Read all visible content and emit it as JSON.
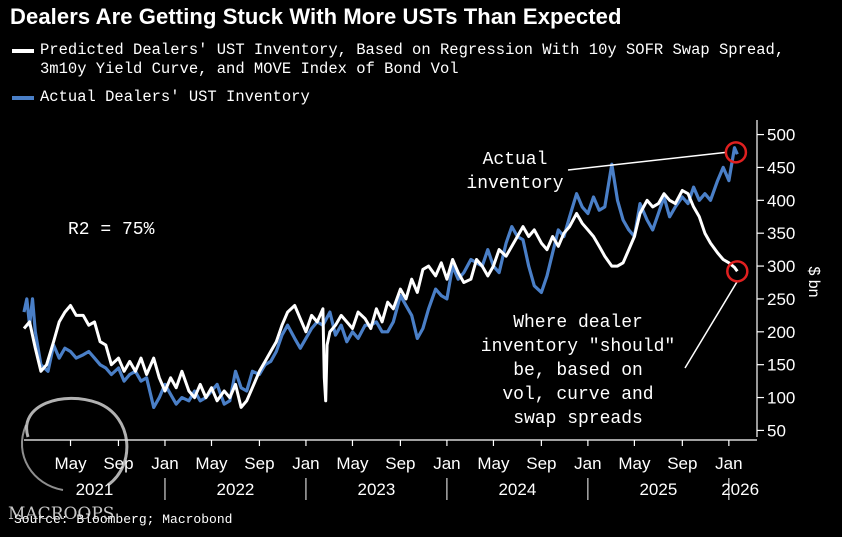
{
  "title": "Dealers Are Getting Stuck With More USTs Than Expected",
  "legend": [
    {
      "label_line1": "Predicted Dealers' UST Inventory, Based on Regression With 10y SOFR Swap Spread,",
      "label_line2": "3m10y Yield Curve, and MOVE Index of Bond Vol",
      "color": "#ffffff"
    },
    {
      "label_line1": "Actual Dealers' UST Inventory",
      "label_line2": "",
      "color": "#4a7fc7"
    }
  ],
  "source": "Source: Bloomberg; Macrobond",
  "watermark": "MACROOPS",
  "chart_data": {
    "type": "line",
    "title": "Dealers Are Getting Stuck With More USTs Than Expected",
    "ylabel": "$ bn",
    "ylim": [
      40,
      510
    ],
    "yticks": [
      50,
      100,
      150,
      200,
      250,
      300,
      350,
      400,
      450,
      500
    ],
    "xlim": [
      2021.0,
      2026.15
    ],
    "xticks": [
      {
        "t": 2021.33,
        "label": "May"
      },
      {
        "t": 2021.67,
        "label": "Sep"
      },
      {
        "t": 2022.0,
        "label": "Jan"
      },
      {
        "t": 2022.33,
        "label": "May"
      },
      {
        "t": 2022.67,
        "label": "Sep"
      },
      {
        "t": 2023.0,
        "label": "Jan"
      },
      {
        "t": 2023.33,
        "label": "May"
      },
      {
        "t": 2023.67,
        "label": "Sep"
      },
      {
        "t": 2024.0,
        "label": "Jan"
      },
      {
        "t": 2024.33,
        "label": "May"
      },
      {
        "t": 2024.67,
        "label": "Sep"
      },
      {
        "t": 2025.0,
        "label": "Jan"
      },
      {
        "t": 2025.33,
        "label": "May"
      },
      {
        "t": 2025.67,
        "label": "Sep"
      },
      {
        "t": 2026.0,
        "label": "Jan"
      }
    ],
    "years": [
      {
        "t": 2021.5,
        "label": "2021"
      },
      {
        "t": 2022.5,
        "label": "2022"
      },
      {
        "t": 2023.5,
        "label": "2023"
      },
      {
        "t": 2024.5,
        "label": "2024"
      },
      {
        "t": 2025.5,
        "label": "2025"
      },
      {
        "t": 2026.08,
        "label": "2026"
      }
    ],
    "series": [
      {
        "name": "Predicted Dealers' UST Inventory",
        "color": "#ffffff",
        "points": [
          [
            2021.0,
            205
          ],
          [
            2021.04,
            215
          ],
          [
            2021.08,
            175
          ],
          [
            2021.12,
            140
          ],
          [
            2021.16,
            150
          ],
          [
            2021.21,
            185
          ],
          [
            2021.25,
            215
          ],
          [
            2021.29,
            230
          ],
          [
            2021.33,
            240
          ],
          [
            2021.37,
            225
          ],
          [
            2021.42,
            225
          ],
          [
            2021.46,
            210
          ],
          [
            2021.5,
            215
          ],
          [
            2021.54,
            185
          ],
          [
            2021.58,
            180
          ],
          [
            2021.62,
            150
          ],
          [
            2021.67,
            160
          ],
          [
            2021.71,
            140
          ],
          [
            2021.75,
            155
          ],
          [
            2021.79,
            140
          ],
          [
            2021.83,
            160
          ],
          [
            2021.87,
            135
          ],
          [
            2021.92,
            160
          ],
          [
            2021.96,
            130
          ],
          [
            2022.0,
            110
          ],
          [
            2022.04,
            130
          ],
          [
            2022.08,
            115
          ],
          [
            2022.12,
            140
          ],
          [
            2022.17,
            110
          ],
          [
            2022.21,
            100
          ],
          [
            2022.25,
            120
          ],
          [
            2022.29,
            100
          ],
          [
            2022.33,
            115
          ],
          [
            2022.37,
            95
          ],
          [
            2022.42,
            110
          ],
          [
            2022.46,
            100
          ],
          [
            2022.5,
            120
          ],
          [
            2022.54,
            85
          ],
          [
            2022.58,
            95
          ],
          [
            2022.62,
            115
          ],
          [
            2022.67,
            140
          ],
          [
            2022.71,
            155
          ],
          [
            2022.75,
            170
          ],
          [
            2022.79,
            185
          ],
          [
            2022.83,
            210
          ],
          [
            2022.87,
            230
          ],
          [
            2022.92,
            240
          ],
          [
            2022.96,
            220
          ],
          [
            2023.0,
            200
          ],
          [
            2023.04,
            225
          ],
          [
            2023.08,
            215
          ],
          [
            2023.12,
            235
          ],
          [
            2023.13,
            130
          ],
          [
            2023.14,
            95
          ],
          [
            2023.15,
            180
          ],
          [
            2023.17,
            200
          ],
          [
            2023.21,
            210
          ],
          [
            2023.25,
            225
          ],
          [
            2023.29,
            215
          ],
          [
            2023.33,
            205
          ],
          [
            2023.37,
            230
          ],
          [
            2023.42,
            220
          ],
          [
            2023.46,
            205
          ],
          [
            2023.5,
            235
          ],
          [
            2023.54,
            215
          ],
          [
            2023.58,
            245
          ],
          [
            2023.62,
            235
          ],
          [
            2023.67,
            265
          ],
          [
            2023.71,
            250
          ],
          [
            2023.75,
            280
          ],
          [
            2023.79,
            260
          ],
          [
            2023.83,
            295
          ],
          [
            2023.87,
            300
          ],
          [
            2023.92,
            285
          ],
          [
            2023.96,
            305
          ],
          [
            2024.0,
            280
          ],
          [
            2024.04,
            310
          ],
          [
            2024.08,
            290
          ],
          [
            2024.12,
            275
          ],
          [
            2024.17,
            280
          ],
          [
            2024.21,
            310
          ],
          [
            2024.25,
            300
          ],
          [
            2024.29,
            285
          ],
          [
            2024.33,
            300
          ],
          [
            2024.37,
            325
          ],
          [
            2024.42,
            315
          ],
          [
            2024.46,
            330
          ],
          [
            2024.5,
            345
          ],
          [
            2024.54,
            360
          ],
          [
            2024.58,
            345
          ],
          [
            2024.62,
            355
          ],
          [
            2024.67,
            335
          ],
          [
            2024.71,
            325
          ],
          [
            2024.75,
            345
          ],
          [
            2024.79,
            330
          ],
          [
            2024.83,
            350
          ],
          [
            2024.87,
            360
          ],
          [
            2024.92,
            380
          ],
          [
            2024.96,
            365
          ],
          [
            2025.0,
            355
          ],
          [
            2025.04,
            345
          ],
          [
            2025.08,
            330
          ],
          [
            2025.12,
            315
          ],
          [
            2025.17,
            300
          ],
          [
            2025.21,
            300
          ],
          [
            2025.25,
            305
          ],
          [
            2025.29,
            325
          ],
          [
            2025.33,
            345
          ],
          [
            2025.37,
            380
          ],
          [
            2025.42,
            400
          ],
          [
            2025.46,
            390
          ],
          [
            2025.5,
            395
          ],
          [
            2025.54,
            410
          ],
          [
            2025.58,
            400
          ],
          [
            2025.62,
            395
          ],
          [
            2025.67,
            415
          ],
          [
            2025.71,
            410
          ],
          [
            2025.75,
            390
          ],
          [
            2025.79,
            375
          ],
          [
            2025.83,
            350
          ],
          [
            2025.87,
            335
          ],
          [
            2025.92,
            320
          ],
          [
            2025.96,
            310
          ],
          [
            2026.0,
            305
          ],
          [
            2026.04,
            298
          ],
          [
            2026.06,
            292
          ]
        ]
      },
      {
        "name": "Actual Dealers' UST Inventory",
        "color": "#4a7fc7",
        "points": [
          [
            2021.0,
            230
          ],
          [
            2021.02,
            250
          ],
          [
            2021.04,
            210
          ],
          [
            2021.06,
            250
          ],
          [
            2021.08,
            200
          ],
          [
            2021.12,
            150
          ],
          [
            2021.17,
            140
          ],
          [
            2021.21,
            180
          ],
          [
            2021.25,
            160
          ],
          [
            2021.29,
            175
          ],
          [
            2021.33,
            170
          ],
          [
            2021.37,
            160
          ],
          [
            2021.42,
            165
          ],
          [
            2021.46,
            170
          ],
          [
            2021.5,
            160
          ],
          [
            2021.54,
            150
          ],
          [
            2021.58,
            145
          ],
          [
            2021.62,
            135
          ],
          [
            2021.67,
            145
          ],
          [
            2021.71,
            125
          ],
          [
            2021.75,
            135
          ],
          [
            2021.79,
            140
          ],
          [
            2021.83,
            125
          ],
          [
            2021.87,
            130
          ],
          [
            2021.92,
            85
          ],
          [
            2021.96,
            100
          ],
          [
            2022.0,
            120
          ],
          [
            2022.04,
            105
          ],
          [
            2022.08,
            90
          ],
          [
            2022.12,
            100
          ],
          [
            2022.17,
            95
          ],
          [
            2022.21,
            110
          ],
          [
            2022.25,
            95
          ],
          [
            2022.29,
            100
          ],
          [
            2022.33,
            110
          ],
          [
            2022.37,
            120
          ],
          [
            2022.42,
            90
          ],
          [
            2022.46,
            95
          ],
          [
            2022.5,
            140
          ],
          [
            2022.54,
            115
          ],
          [
            2022.58,
            110
          ],
          [
            2022.62,
            140
          ],
          [
            2022.67,
            135
          ],
          [
            2022.71,
            150
          ],
          [
            2022.75,
            155
          ],
          [
            2022.79,
            170
          ],
          [
            2022.83,
            195
          ],
          [
            2022.87,
            210
          ],
          [
            2022.92,
            190
          ],
          [
            2022.96,
            175
          ],
          [
            2023.0,
            190
          ],
          [
            2023.04,
            205
          ],
          [
            2023.08,
            215
          ],
          [
            2023.12,
            210
          ],
          [
            2023.17,
            230
          ],
          [
            2023.21,
            195
          ],
          [
            2023.25,
            210
          ],
          [
            2023.29,
            185
          ],
          [
            2023.33,
            200
          ],
          [
            2023.37,
            190
          ],
          [
            2023.42,
            210
          ],
          [
            2023.46,
            210
          ],
          [
            2023.5,
            215
          ],
          [
            2023.54,
            200
          ],
          [
            2023.58,
            200
          ],
          [
            2023.62,
            215
          ],
          [
            2023.67,
            255
          ],
          [
            2023.71,
            240
          ],
          [
            2023.75,
            225
          ],
          [
            2023.79,
            190
          ],
          [
            2023.83,
            205
          ],
          [
            2023.87,
            235
          ],
          [
            2023.92,
            265
          ],
          [
            2023.96,
            255
          ],
          [
            2024.0,
            250
          ],
          [
            2024.04,
            300
          ],
          [
            2024.08,
            280
          ],
          [
            2024.12,
            290
          ],
          [
            2024.17,
            310
          ],
          [
            2024.21,
            305
          ],
          [
            2024.25,
            300
          ],
          [
            2024.29,
            325
          ],
          [
            2024.33,
            300
          ],
          [
            2024.37,
            290
          ],
          [
            2024.42,
            335
          ],
          [
            2024.46,
            360
          ],
          [
            2024.5,
            345
          ],
          [
            2024.54,
            340
          ],
          [
            2024.58,
            300
          ],
          [
            2024.62,
            270
          ],
          [
            2024.67,
            260
          ],
          [
            2024.71,
            285
          ],
          [
            2024.75,
            320
          ],
          [
            2024.79,
            355
          ],
          [
            2024.83,
            345
          ],
          [
            2024.87,
            375
          ],
          [
            2024.92,
            410
          ],
          [
            2024.96,
            390
          ],
          [
            2025.0,
            380
          ],
          [
            2025.04,
            405
          ],
          [
            2025.08,
            385
          ],
          [
            2025.12,
            390
          ],
          [
            2025.17,
            455
          ],
          [
            2025.21,
            400
          ],
          [
            2025.25,
            370
          ],
          [
            2025.29,
            355
          ],
          [
            2025.33,
            345
          ],
          [
            2025.37,
            395
          ],
          [
            2025.42,
            370
          ],
          [
            2025.46,
            355
          ],
          [
            2025.5,
            380
          ],
          [
            2025.54,
            405
          ],
          [
            2025.58,
            375
          ],
          [
            2025.62,
            390
          ],
          [
            2025.67,
            405
          ],
          [
            2025.71,
            395
          ],
          [
            2025.75,
            420
          ],
          [
            2025.79,
            400
          ],
          [
            2025.83,
            410
          ],
          [
            2025.87,
            400
          ],
          [
            2025.92,
            430
          ],
          [
            2025.96,
            450
          ],
          [
            2026.0,
            430
          ],
          [
            2026.04,
            480
          ],
          [
            2026.06,
            470
          ]
        ]
      }
    ],
    "annotations": [
      {
        "id": "r2",
        "text": "R2 = 75%"
      },
      {
        "id": "actual",
        "line1": "Actual",
        "line2": "inventory",
        "pointer_t": 2026.05,
        "pointer_v": 473
      },
      {
        "id": "predicted",
        "line1": "Where dealer",
        "line2": "inventory \"should\"",
        "line3": "be, based on",
        "line4": "vol, curve and",
        "line5": "swap spreads",
        "pointer_t": 2026.06,
        "pointer_v": 292
      }
    ]
  }
}
